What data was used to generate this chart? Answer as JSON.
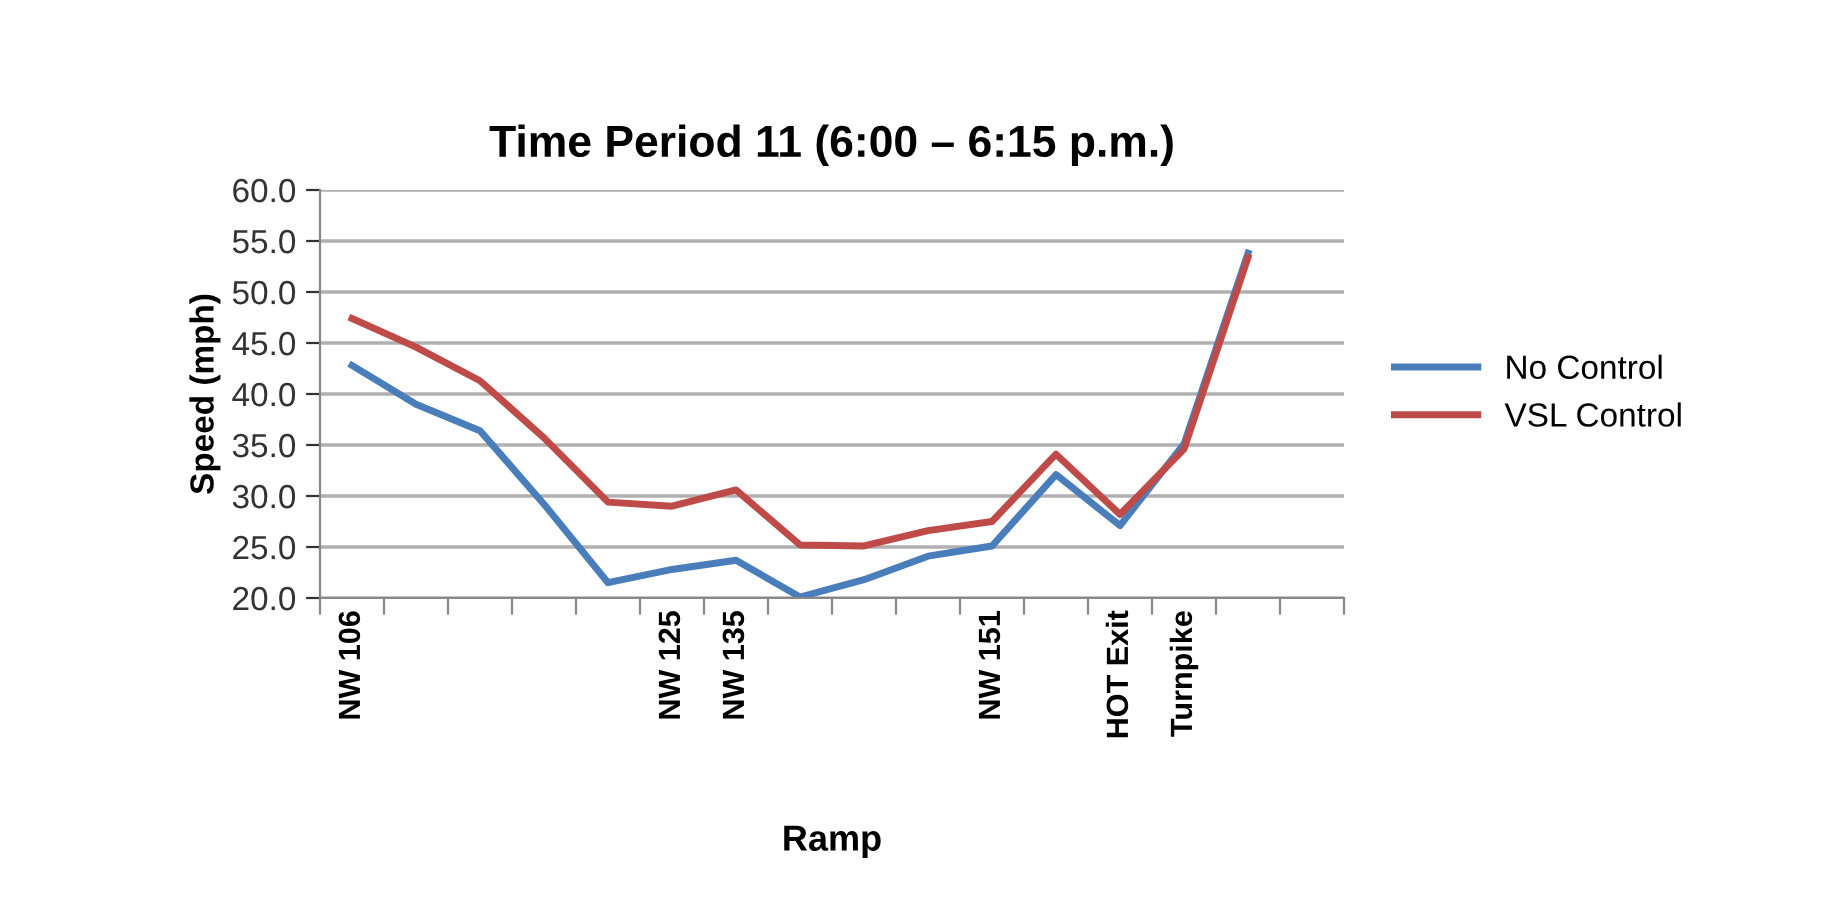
{
  "chart_data": {
    "type": "line",
    "title": "Time Period 11 (6:00 – 6:15 p.m.)",
    "xlabel": "Ramp",
    "ylabel": "Speed (mph)",
    "categories": [
      "NW 106",
      null,
      null,
      null,
      null,
      "NW 125",
      "NW 135",
      null,
      null,
      null,
      "NW 151",
      null,
      "HOT Exit",
      "Turnpike",
      null,
      null
    ],
    "series": [
      {
        "name": "No Control",
        "color": "#4a7ebb",
        "values": [
          42.8,
          39.0,
          36.4,
          29.2,
          21.5,
          22.8,
          23.7,
          20.1,
          21.8,
          24.1,
          25.1,
          32.1,
          27.1,
          35.1,
          53.8,
          null
        ]
      },
      {
        "name": "VSL Control",
        "color": "#be4b48",
        "values": [
          47.4,
          44.6,
          41.3,
          35.7,
          29.4,
          29.0,
          30.6,
          25.2,
          25.1,
          26.6,
          27.5,
          34.1,
          28.2,
          34.6,
          53.4,
          null
        ]
      }
    ],
    "ylim": [
      20,
      60
    ],
    "yticks": [
      {
        "value": 20,
        "label": "20.0"
      },
      {
        "value": 25,
        "label": "25.0"
      },
      {
        "value": 30,
        "label": "30.0"
      },
      {
        "value": 35,
        "label": "35.0"
      },
      {
        "value": 40,
        "label": "40.0"
      },
      {
        "value": 45,
        "label": "45.0"
      },
      {
        "value": 50,
        "label": "50.0"
      },
      {
        "value": 55,
        "label": "55.0"
      },
      {
        "value": 60,
        "label": "60.0"
      }
    ],
    "grid": "y",
    "legend": "right",
    "marker": "none",
    "line_style": "solid"
  }
}
